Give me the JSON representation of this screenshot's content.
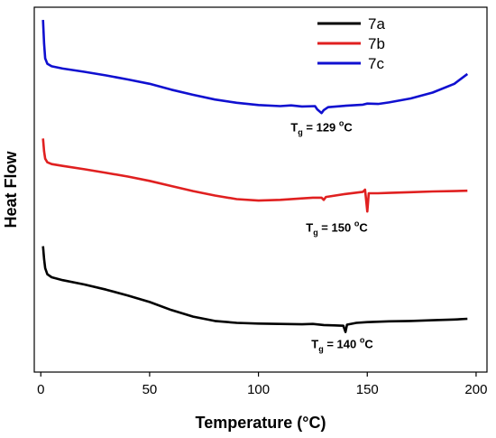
{
  "chart_data": {
    "type": "line",
    "xlabel": "Temperature (°C)",
    "ylabel": "Heat Flow",
    "xlim": [
      -3,
      205
    ],
    "ylim": [
      0,
      1
    ],
    "x_ticks": [
      "0",
      "50",
      "100",
      "150",
      "200"
    ],
    "x_tick_values": [
      0,
      50,
      100,
      150,
      200
    ],
    "y_ticks_shown": false,
    "legend_position": "top-center",
    "series": [
      {
        "name": "7a",
        "color": "#000000",
        "points": [
          [
            1,
            0.345
          ],
          [
            1.5,
            0.31
          ],
          [
            2,
            0.285
          ],
          [
            3,
            0.268
          ],
          [
            5,
            0.26
          ],
          [
            10,
            0.252
          ],
          [
            20,
            0.24
          ],
          [
            30,
            0.226
          ],
          [
            40,
            0.21
          ],
          [
            50,
            0.192
          ],
          [
            60,
            0.17
          ],
          [
            70,
            0.152
          ],
          [
            80,
            0.14
          ],
          [
            90,
            0.135
          ],
          [
            100,
            0.133
          ],
          [
            110,
            0.132
          ],
          [
            120,
            0.131
          ],
          [
            125,
            0.132
          ],
          [
            130,
            0.129
          ],
          [
            135,
            0.128
          ],
          [
            139,
            0.127
          ],
          [
            140,
            0.11
          ],
          [
            140.7,
            0.13
          ],
          [
            145,
            0.135
          ],
          [
            150,
            0.137
          ],
          [
            160,
            0.139
          ],
          [
            170,
            0.14
          ],
          [
            180,
            0.142
          ],
          [
            190,
            0.144
          ],
          [
            196,
            0.146
          ]
        ]
      },
      {
        "name": "7b",
        "color": "#e02020",
        "points": [
          [
            1,
            0.64
          ],
          [
            1.5,
            0.605
          ],
          [
            2,
            0.585
          ],
          [
            3,
            0.575
          ],
          [
            5,
            0.57
          ],
          [
            10,
            0.565
          ],
          [
            20,
            0.556
          ],
          [
            30,
            0.546
          ],
          [
            40,
            0.536
          ],
          [
            50,
            0.524
          ],
          [
            60,
            0.51
          ],
          [
            70,
            0.496
          ],
          [
            80,
            0.484
          ],
          [
            90,
            0.474
          ],
          [
            100,
            0.47
          ],
          [
            110,
            0.472
          ],
          [
            120,
            0.476
          ],
          [
            125,
            0.478
          ],
          [
            129,
            0.478
          ],
          [
            130,
            0.472
          ],
          [
            131,
            0.48
          ],
          [
            140,
            0.488
          ],
          [
            148,
            0.494
          ],
          [
            149,
            0.5
          ],
          [
            150,
            0.44
          ],
          [
            150.7,
            0.49
          ],
          [
            155,
            0.49
          ],
          [
            160,
            0.491
          ],
          [
            170,
            0.493
          ],
          [
            180,
            0.495
          ],
          [
            190,
            0.496
          ],
          [
            196,
            0.497
          ]
        ]
      },
      {
        "name": "7c",
        "color": "#1010d0",
        "points": [
          [
            1,
            0.965
          ],
          [
            1.5,
            0.9
          ],
          [
            2,
            0.86
          ],
          [
            3,
            0.845
          ],
          [
            5,
            0.838
          ],
          [
            10,
            0.832
          ],
          [
            20,
            0.823
          ],
          [
            30,
            0.813
          ],
          [
            40,
            0.802
          ],
          [
            50,
            0.79
          ],
          [
            60,
            0.774
          ],
          [
            70,
            0.76
          ],
          [
            80,
            0.747
          ],
          [
            90,
            0.738
          ],
          [
            100,
            0.732
          ],
          [
            110,
            0.729
          ],
          [
            115,
            0.731
          ],
          [
            120,
            0.728
          ],
          [
            126,
            0.729
          ],
          [
            127,
            0.72
          ],
          [
            129,
            0.71
          ],
          [
            130,
            0.718
          ],
          [
            132,
            0.726
          ],
          [
            140,
            0.73
          ],
          [
            148,
            0.733
          ],
          [
            150,
            0.736
          ],
          [
            155,
            0.735
          ],
          [
            160,
            0.739
          ],
          [
            170,
            0.75
          ],
          [
            180,
            0.766
          ],
          [
            190,
            0.79
          ],
          [
            196,
            0.817
          ]
        ]
      }
    ],
    "annotations": [
      {
        "main": "T",
        "sub": "g",
        "rest": " = 129 ",
        "sup": "o",
        "unit": "C",
        "x": 129,
        "y": 0.66
      },
      {
        "main": "T",
        "sub": "g",
        "rest": " =  150 ",
        "sup": "o",
        "unit": "C",
        "x": 136,
        "y": 0.385
      },
      {
        "main": "T",
        "sub": "g",
        "rest": " = 140 ",
        "sup": "o",
        "unit": "C",
        "x": 138.5,
        "y": 0.065
      }
    ]
  }
}
